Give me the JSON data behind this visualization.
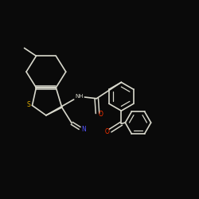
{
  "background_color": "#0a0a0a",
  "bond_color": "#d8d8cc",
  "N_color": "#5555ff",
  "S_color": "#ddaa00",
  "O_color": "#ff3300",
  "figsize": [
    2.5,
    2.5
  ],
  "dpi": 100,
  "xlim": [
    0,
    10
  ],
  "ylim": [
    0,
    10
  ]
}
